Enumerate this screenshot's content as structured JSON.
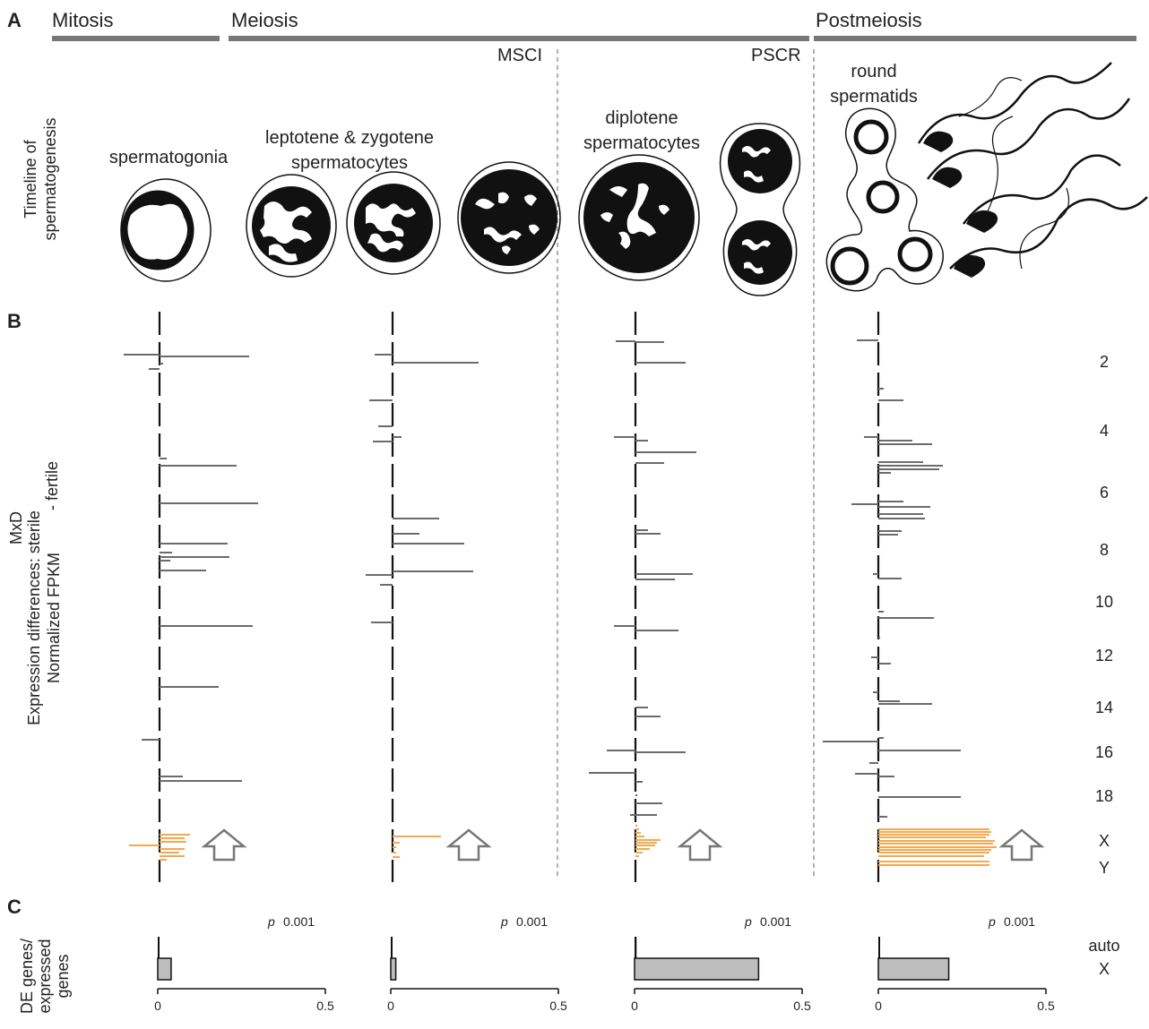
{
  "panels": {
    "a": "A",
    "b": "B",
    "c": "C"
  },
  "stages": {
    "mitosis": "Mitosis",
    "meiosis": "Meiosis",
    "postmeiosis": "Postmeiosis"
  },
  "events": {
    "msci": "MSCI",
    "pscr": "PSCR"
  },
  "cells": {
    "spermatogonia": "spermatogonia",
    "lepzyg_line1": "leptotene & zygotene",
    "lepzyg_line2": "spermatocytes",
    "dip_line1": "diplotene",
    "dip_line2": "spermatocytes",
    "round_line1": "round",
    "round_line2": "spermatids"
  },
  "axes": {
    "timeline_line1": "Timeline of",
    "timeline_line2": "spermatogenesis",
    "exp_line1": "MxD",
    "exp_line2": "Expression differences: sterile",
    "exp_line2b": "- fertile",
    "exp_line3": "Normalized FPKM",
    "c_line1": "DE genes/",
    "c_line2": "expressed",
    "c_line3": "genes"
  },
  "chromosome_labels": [
    "2",
    "4",
    "6",
    "8",
    "10",
    "12",
    "14",
    "16",
    "18",
    "X",
    "Y"
  ],
  "colors": {
    "autosome": "#6b6b6b",
    "x_linked": "#f5a94e",
    "bar_fill": "#bdbdbd",
    "timeline": "#777777"
  },
  "chart_data": {
    "type": "bar",
    "series_type": "horizontal",
    "xlim": [
      0,
      0.5
    ],
    "xticks": [
      "0",
      "0.5"
    ],
    "p_prefix": "p",
    "p_value_text": "0.001",
    "legend": [
      "auto",
      "X"
    ],
    "categories": [
      "spermatogonia",
      "leptotene & zygotene spermatocytes",
      "diplotene spermatocytes",
      "round spermatids"
    ],
    "series": [
      {
        "name": "auto",
        "values": [
          0.005,
          0.004,
          0.006,
          0.005
        ]
      },
      {
        "name": "X",
        "values": [
          0.04,
          0.015,
          0.37,
          0.21
        ]
      }
    ]
  }
}
